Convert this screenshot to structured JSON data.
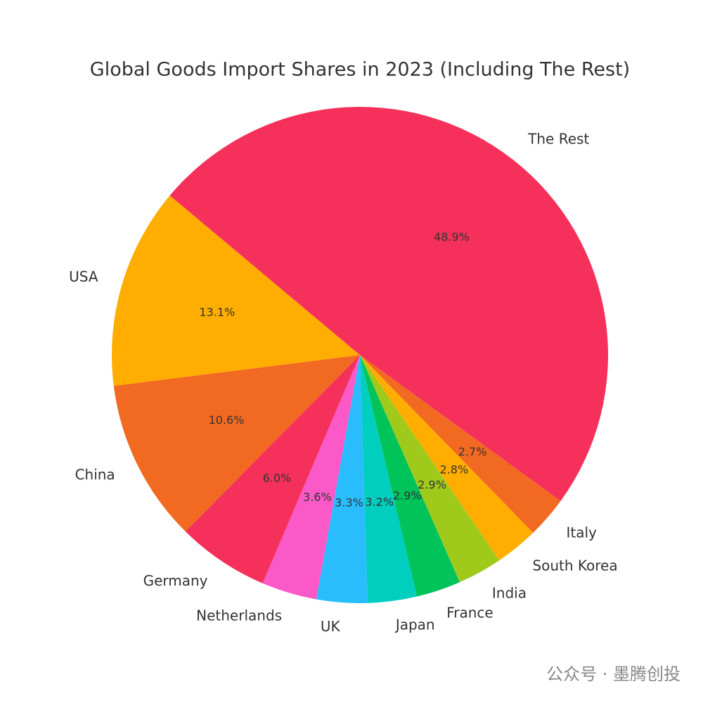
{
  "chart_data": {
    "type": "pie",
    "title": "Global Goods Import Shares in 2023 (Including The Rest)",
    "categories": [
      "USA",
      "China",
      "Germany",
      "Netherlands",
      "UK",
      "Japan",
      "France",
      "India",
      "South Korea",
      "Italy",
      "The Rest"
    ],
    "values": [
      13.1,
      10.6,
      6.0,
      3.6,
      3.3,
      3.2,
      2.9,
      2.9,
      2.8,
      2.7,
      48.9
    ],
    "value_labels": [
      "13.1%",
      "10.6%",
      "6.0%",
      "3.6%",
      "3.3%",
      "3.2%",
      "2.9%",
      "2.9%",
      "2.8%",
      "2.7%",
      "48.9%"
    ],
    "colors": [
      "#ffae00",
      "#f26a22",
      "#f5305a",
      "#fb58c8",
      "#29bdfd",
      "#00cebf",
      "#00c35a",
      "#9fca1c",
      "#ffae00",
      "#f26a22",
      "#f5305a"
    ],
    "watermark": "公众号 · 墨腾创投"
  }
}
